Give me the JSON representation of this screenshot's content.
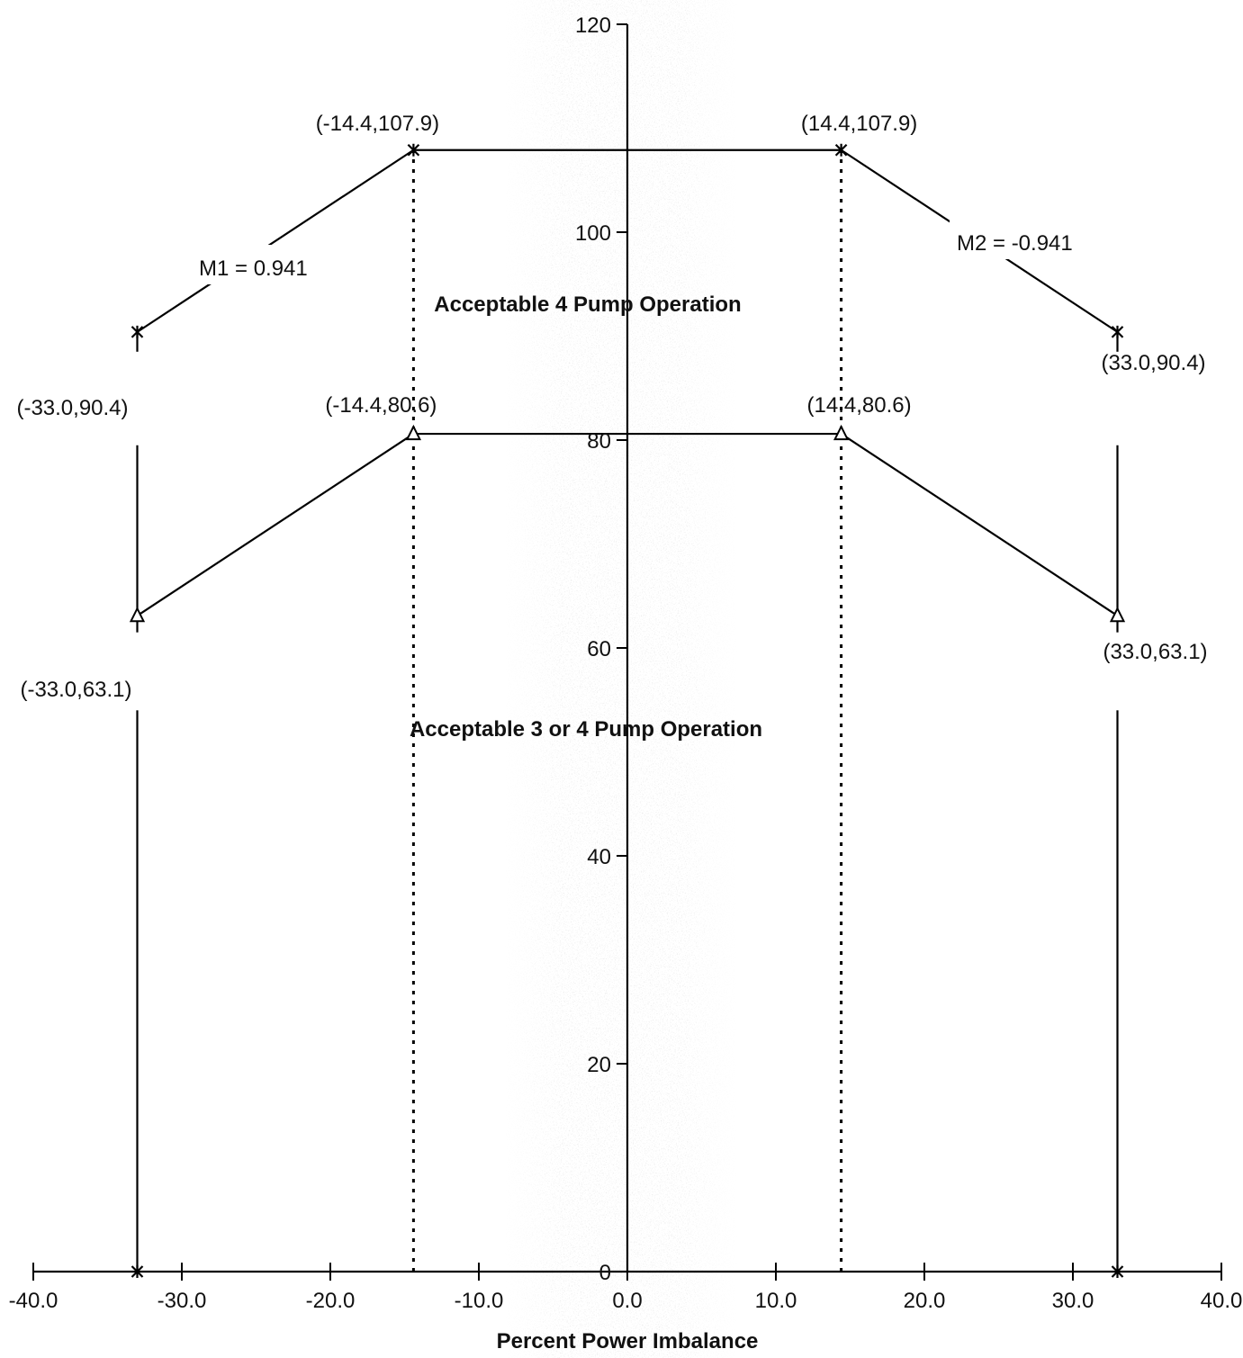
{
  "chart_data": {
    "type": "line",
    "xlabel": "Percent Power Imbalance",
    "ylabel": "",
    "xlim": [
      -40,
      40
    ],
    "ylim": [
      0,
      120
    ],
    "x_ticks": [
      -40,
      -30,
      -20,
      -10,
      0,
      10,
      20,
      30,
      40
    ],
    "x_tick_labels": [
      "-40.0",
      "-30.0",
      "-20.0",
      "-10.0",
      "0.0",
      "10.0",
      "20.0",
      "30.0",
      "40.0"
    ],
    "y_ticks": [
      0,
      20,
      40,
      60,
      80,
      100,
      120
    ],
    "y_tick_labels": [
      "0",
      "20",
      "40",
      "60",
      "80",
      "100",
      "120"
    ],
    "grid": false,
    "series": [
      {
        "marker": "x",
        "points": [
          {
            "x": -33.0,
            "y": 0
          },
          {
            "x": -33.0,
            "y": 90.4
          },
          {
            "x": -14.4,
            "y": 107.9
          },
          {
            "x": 14.4,
            "y": 107.9
          },
          {
            "x": 33.0,
            "y": 90.4
          },
          {
            "x": 33.0,
            "y": 0
          }
        ]
      },
      {
        "marker": "triangle",
        "points": [
          {
            "x": -33.0,
            "y": 63.1
          },
          {
            "x": -14.4,
            "y": 80.6
          },
          {
            "x": 14.4,
            "y": 80.6
          },
          {
            "x": 33.0,
            "y": 63.1
          }
        ]
      }
    ],
    "dotted_lines": [
      {
        "x": -14.4,
        "y_from": 0,
        "y_to": 107.9
      },
      {
        "x": 14.4,
        "y_from": 0,
        "y_to": 107.9
      }
    ],
    "point_labels": [
      {
        "x": -14.4,
        "y": 107.9,
        "text": "(-14.4,107.9)"
      },
      {
        "x": 14.4,
        "y": 107.9,
        "text": "(14.4,107.9)"
      },
      {
        "x": -33.0,
        "y": 90.4,
        "text": "(-33.0,90.4)"
      },
      {
        "x": 33.0,
        "y": 90.4,
        "text": "(33.0,90.4)"
      },
      {
        "x": -14.4,
        "y": 80.6,
        "text": "(-14.4,80.6)"
      },
      {
        "x": 14.4,
        "y": 80.6,
        "text": "(14.4,80.6)"
      },
      {
        "x": -33.0,
        "y": 63.1,
        "text": "(-33.0,63.1)"
      },
      {
        "x": 33.0,
        "y": 63.1,
        "text": "(33.0,63.1)"
      }
    ],
    "annotations": [
      {
        "text": "M1 = 0.941",
        "role": "slope-left"
      },
      {
        "text": "M2 = -0.941",
        "role": "slope-right"
      },
      {
        "text": "Acceptable 4 Pump Operation",
        "role": "region-upper"
      },
      {
        "text": "Acceptable 3 or 4 Pump Operation",
        "role": "region-lower"
      }
    ]
  }
}
